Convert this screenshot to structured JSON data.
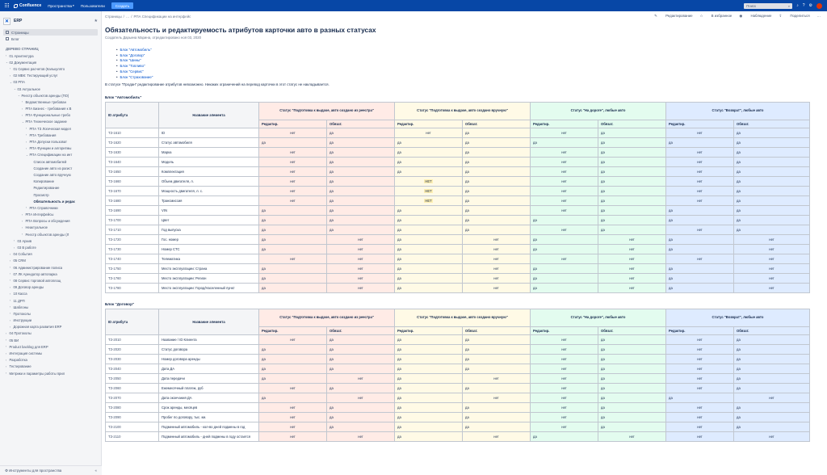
{
  "topbar": {
    "app_name": "Confluence",
    "nav": [
      "Пространства",
      "Пользователи"
    ],
    "create_label": "Создать",
    "search_placeholder": "Поиск",
    "colors": {
      "bar": "#0747a6",
      "create": "#4c9aff"
    }
  },
  "sidebar": {
    "space_name": "ERP",
    "links": [
      {
        "label": "Страницы",
        "active": true
      },
      {
        "label": "Блог",
        "active": false
      }
    ],
    "section_title": "ДЕРЕВО СТРАНИЦ",
    "tree": [
      {
        "label": "01 Архитектура",
        "level": 0,
        "toggle": "›",
        "current": false
      },
      {
        "label": "02 Документация",
        "level": 0,
        "toggle": "⌄",
        "current": false
      },
      {
        "label": "01 Сервис расчетов (Калькулято",
        "level": 1,
        "toggle": "›",
        "current": false
      },
      {
        "label": "02 МВК: Тестирующий услуг",
        "level": 1,
        "toggle": "›",
        "current": false
      },
      {
        "label": "03 РПА",
        "level": 1,
        "toggle": "⌄",
        "current": false
      },
      {
        "label": "03 Актуальное",
        "level": 2,
        "toggle": "⌄",
        "current": false
      },
      {
        "label": "Реестр объектов аренды (ПО)",
        "level": 3,
        "toggle": "⌄",
        "current": false
      },
      {
        "label": "Ведомственные требован",
        "level": 4,
        "toggle": "›",
        "current": false
      },
      {
        "label": "РПА Бизнес - требования к В",
        "level": 4,
        "toggle": "›",
        "current": false
      },
      {
        "label": "РПА Функциональные требо",
        "level": 4,
        "toggle": "›",
        "current": false
      },
      {
        "label": "РПА Техническое задание",
        "level": 4,
        "toggle": "⌄",
        "current": false
      },
      {
        "label": "РПА ТЗ Логическая модел",
        "level": 5,
        "toggle": "›",
        "current": false
      },
      {
        "label": "РПА Требования",
        "level": 5,
        "toggle": "›",
        "current": false
      },
      {
        "label": "РПА Допуски пользоват",
        "level": 5,
        "toggle": "›",
        "current": false
      },
      {
        "label": "РПА Функции и алгоритмы",
        "level": 5,
        "toggle": "›",
        "current": false
      },
      {
        "label": "РПА Спецификации на инт",
        "level": 5,
        "toggle": "⌄",
        "current": false
      },
      {
        "label": "Список автомобилей",
        "level": 6,
        "toggle": "",
        "current": false
      },
      {
        "label": "Создание авто из рагист",
        "level": 6,
        "toggle": "",
        "current": false
      },
      {
        "label": "Создание авто вручную",
        "level": 6,
        "toggle": "",
        "current": false
      },
      {
        "label": "Копирование",
        "level": 6,
        "toggle": "",
        "current": false
      },
      {
        "label": "Редактирование",
        "level": 6,
        "toggle": "",
        "current": false
      },
      {
        "label": "Просмотр",
        "level": 6,
        "toggle": "",
        "current": false
      },
      {
        "label": "Обязательность и редак",
        "level": 6,
        "toggle": "",
        "current": true
      },
      {
        "label": "РПА Справочники",
        "level": 5,
        "toggle": "›",
        "current": false
      },
      {
        "label": "РПА Интерфейсы",
        "level": 4,
        "toggle": "›",
        "current": false
      },
      {
        "label": "РПА Вопросы и обсуждения",
        "level": 4,
        "toggle": "›",
        "current": false
      },
      {
        "label": "Неактуальное",
        "level": 4,
        "toggle": "›",
        "current": false
      },
      {
        "label": "Реестр объектов аренды (Л",
        "level": 4,
        "toggle": "›",
        "current": false
      },
      {
        "label": "03 Архив",
        "level": 2,
        "toggle": "›",
        "current": false
      },
      {
        "label": "03 В работе",
        "level": 2,
        "toggle": "›",
        "current": false
      },
      {
        "label": "04 События",
        "level": 1,
        "toggle": "›",
        "current": false
      },
      {
        "label": "05 CRM",
        "level": 1,
        "toggle": "›",
        "current": false
      },
      {
        "label": "06 Администрирование полиса",
        "level": 1,
        "toggle": "›",
        "current": false
      },
      {
        "label": "07 ЛК Арендатор автопарка",
        "level": 1,
        "toggle": "›",
        "current": false
      },
      {
        "label": "08 Сервис торговой автоплощ",
        "level": 1,
        "toggle": "›",
        "current": false
      },
      {
        "label": "09 Договор аренды",
        "level": 1,
        "toggle": "›",
        "current": false
      },
      {
        "label": "10 Касса",
        "level": 1,
        "toggle": "›",
        "current": false
      },
      {
        "label": "11 ДРП",
        "level": 1,
        "toggle": "›",
        "current": false
      },
      {
        "label": "Шаблоны",
        "level": 1,
        "toggle": "›",
        "current": false
      },
      {
        "label": "Протоколы",
        "level": 1,
        "toggle": "›",
        "current": false
      },
      {
        "label": "Инструкции",
        "level": 1,
        "toggle": "›",
        "current": false
      },
      {
        "label": "Дорожная карта развития ERP",
        "level": 1,
        "toggle": "›",
        "current": false
      },
      {
        "label": "04 Протоколы",
        "level": 0,
        "toggle": "›",
        "current": false
      },
      {
        "label": "05 ВИ",
        "level": 0,
        "toggle": "›",
        "current": false
      },
      {
        "label": "Product backlog для ERP",
        "level": 0,
        "toggle": "›",
        "current": false
      },
      {
        "label": "Интеграция системы",
        "level": 0,
        "toggle": "›",
        "current": false
      },
      {
        "label": "Разработка",
        "level": 0,
        "toggle": "›",
        "current": false
      },
      {
        "label": "Тестирование",
        "level": 0,
        "toggle": "›",
        "current": false
      },
      {
        "label": "Метрики и параметры работы прил",
        "level": 0,
        "toggle": "›",
        "current": false
      }
    ],
    "footer_label": "Инструменты для пространства"
  },
  "page": {
    "breadcrumbs": [
      "Страницы",
      "/",
      "…",
      "/",
      "РПА Спецификации на интерфейс"
    ],
    "actions": [
      "Редактирование",
      "В избранное",
      "Наблюдение",
      "Поделиться",
      "…"
    ],
    "title": "Обязательность и редактируемость атрибутов карточки авто в разных статусах",
    "byline": "Создатель Дарьина Марина, отредактировано ноя 03, 2020",
    "toc": [
      "Блок \"Автомобиль\"",
      "Блок \"Договор\"",
      "Блок \"Шины\"",
      "Блок \"Топливо\"",
      "Блок \"Сервис\"",
      "Блок \"Страхование\""
    ],
    "note": "В статусе \"Продан\" редактирование атрибутов невозможно. Никаких ограничений на перевод карточки в этот статус не накладывается."
  },
  "tables": [
    {
      "block_title": "Блок \"Автомобиль\"",
      "id_header": "ID атрибута",
      "name_header": "Название элемента",
      "statuses": [
        {
          "label": "Статус \"Подготовка к выдаче, авто создано из реестра\"",
          "color": "#ffebe6"
        },
        {
          "label": "Статус \"Подготовка к выдаче, авто создано вручную\"",
          "color": "#fffae6"
        },
        {
          "label": "Статус \"На дороге\", любые авто",
          "color": "#e3fcef"
        },
        {
          "label": "Статус \"Возврат\", любые авто",
          "color": "#deebff"
        }
      ],
      "sub_headers": [
        "Редактир.",
        "Обязат."
      ],
      "rows": [
        {
          "id": "ТЗ-1610",
          "name": "ID",
          "v": [
            "нет",
            "да",
            "нет",
            "да",
            "нет",
            "да",
            "нет",
            "да"
          ]
        },
        {
          "id": "ТЗ-1620",
          "name": "Статус автомобиля",
          "v": [
            "да",
            "да",
            "да",
            "да",
            "да",
            "да",
            "да",
            "да"
          ]
        },
        {
          "id": "ТЗ-1630",
          "name": "Марка",
          "v": [
            "нет",
            "да",
            "да",
            "да",
            "нет",
            "да",
            "нет",
            "да"
          ]
        },
        {
          "id": "ТЗ-1640",
          "name": "Модель",
          "v": [
            "нет",
            "да",
            "да",
            "да",
            "нет",
            "да",
            "нет",
            "да"
          ]
        },
        {
          "id": "ТЗ-1650",
          "name": "Комплектация",
          "v": [
            "нет",
            "да",
            "да",
            "да",
            "нет",
            "да",
            "нет",
            "да"
          ]
        },
        {
          "id": "ТЗ-1660",
          "name": "Объем двигателя, л.",
          "v": [
            "нет",
            "да",
            "НЕТ",
            "да",
            "нет",
            "да",
            "нет",
            "да"
          ]
        },
        {
          "id": "ТЗ-1670",
          "name": "Мощность двигателя, л. с.",
          "v": [
            "нет",
            "да",
            "НЕТ",
            "да",
            "нет",
            "да",
            "нет",
            "да"
          ]
        },
        {
          "id": "ТЗ-1680",
          "name": "Трансмиссия",
          "v": [
            "нет",
            "да",
            "НЕТ",
            "да",
            "нет",
            "да",
            "нет",
            "да"
          ]
        },
        {
          "id": "ТЗ-1690",
          "name": "VIN",
          "v": [
            "да",
            "да",
            "да",
            "да",
            "нет",
            "да",
            "да",
            "да"
          ]
        },
        {
          "id": "ТЗ-1700",
          "name": "Цвет",
          "v": [
            "да",
            "да",
            "да",
            "да",
            "да",
            "да",
            "да",
            "да"
          ]
        },
        {
          "id": "ТЗ-1710",
          "name": "Год выпуска",
          "v": [
            "да",
            "да",
            "да",
            "да",
            "нет",
            "да",
            "нет",
            "да"
          ]
        },
        {
          "id": "ТЗ-1720",
          "name": "Гос. номер",
          "v": [
            "да",
            "нет",
            "да",
            "нет",
            "да",
            "нет",
            "да",
            "нет"
          ]
        },
        {
          "id": "ТЗ-1730",
          "name": "Номер СТС",
          "v": [
            "да",
            "нет",
            "да",
            "нет",
            "да",
            "нет",
            "да",
            "нет"
          ]
        },
        {
          "id": "ТЗ-1740",
          "name": "Телематика",
          "v": [
            "нет",
            "нет",
            "да",
            "нет",
            "нет",
            "нет",
            "нет",
            "нет"
          ]
        },
        {
          "id": "ТЗ-1750",
          "name": "Место эксплуатации: Страна",
          "v": [
            "да",
            "нет",
            "да",
            "нет",
            "да",
            "нет",
            "да",
            "нет"
          ]
        },
        {
          "id": "ТЗ-1760",
          "name": "Место эксплуатации: Регион",
          "v": [
            "да",
            "нет",
            "да",
            "нет",
            "да",
            "нет",
            "да",
            "нет"
          ]
        },
        {
          "id": "ТЗ-1780",
          "name": "Место эксплуатации: Город/Населенный пункт",
          "v": [
            "да",
            "нет",
            "да",
            "нет",
            "да",
            "нет",
            "да",
            "нет"
          ]
        }
      ]
    },
    {
      "block_title": "Блок \"Договор\"",
      "id_header": "ID атрибута",
      "name_header": "Название элемента",
      "statuses": [
        {
          "label": "Статус \"Подготовка к выдаче, авто создано из реестра\"",
          "color": "#ffebe6"
        },
        {
          "label": "Статус \"Подготовка к выдаче, авто создано вручную\"",
          "color": "#fffae6"
        },
        {
          "label": "Статус \"На дороге\", любые авто",
          "color": "#e3fcef"
        },
        {
          "label": "Статус \"Возврат\", любые авто",
          "color": "#deebff"
        }
      ],
      "sub_headers": [
        "Редактир.",
        "Обязат."
      ],
      "rows": [
        {
          "id": "ТЗ-2010",
          "name": "Название / ID Клиента",
          "v": [
            "нет",
            "да",
            "да",
            "да",
            "нет",
            "да",
            "нет",
            "да"
          ]
        },
        {
          "id": "ТЗ-2020",
          "name": "Статус договора",
          "v": [
            "да",
            "да",
            "да",
            "да",
            "нет",
            "да",
            "нет",
            "да"
          ]
        },
        {
          "id": "ТЗ-2030",
          "name": "Номер договора аренды",
          "v": [
            "да",
            "да",
            "да",
            "да",
            "нет",
            "да",
            "нет",
            "да"
          ]
        },
        {
          "id": "ТЗ-2040",
          "name": "Дата ДА",
          "v": [
            "да",
            "да",
            "да",
            "да",
            "нет",
            "да",
            "нет",
            "да"
          ]
        },
        {
          "id": "ТЗ-2050",
          "name": "Дата передачи",
          "v": [
            "да",
            "нет",
            "да",
            "нет",
            "нет",
            "да",
            "нет",
            "да"
          ]
        },
        {
          "id": "ТЗ-2060",
          "name": "Ежемесячный платеж, руб",
          "v": [
            "нет",
            "да",
            "да",
            "да",
            "нет",
            "да",
            "нет",
            "да"
          ]
        },
        {
          "id": "ТЗ-2070",
          "name": "Дата окончания ДА",
          "v": [
            "да",
            "нет",
            "да",
            "нет",
            "нет",
            "да",
            "да",
            "нет"
          ]
        },
        {
          "id": "ТЗ-2080",
          "name": "Срок аренды, месяцев",
          "v": [
            "нет",
            "да",
            "да",
            "да",
            "нет",
            "да",
            "нет",
            "да"
          ]
        },
        {
          "id": "ТЗ-2090",
          "name": "Пробег по договору, тыс. км.",
          "v": [
            "нет",
            "да",
            "да",
            "да",
            "нет",
            "да",
            "нет",
            "да"
          ]
        },
        {
          "id": "ТЗ-2100",
          "name": "Подменный автомобиль - кол-во дней подмены в год",
          "v": [
            "нет",
            "да",
            "да",
            "да",
            "нет",
            "да",
            "нет",
            "да"
          ]
        },
        {
          "id": "ТЗ-2110",
          "name": "Подменный автомобиль - дней подмены в году остается",
          "v": [
            "нет",
            "нет",
            "да",
            "нет",
            "да",
            "нет",
            "нет",
            "нет"
          ]
        }
      ]
    }
  ]
}
